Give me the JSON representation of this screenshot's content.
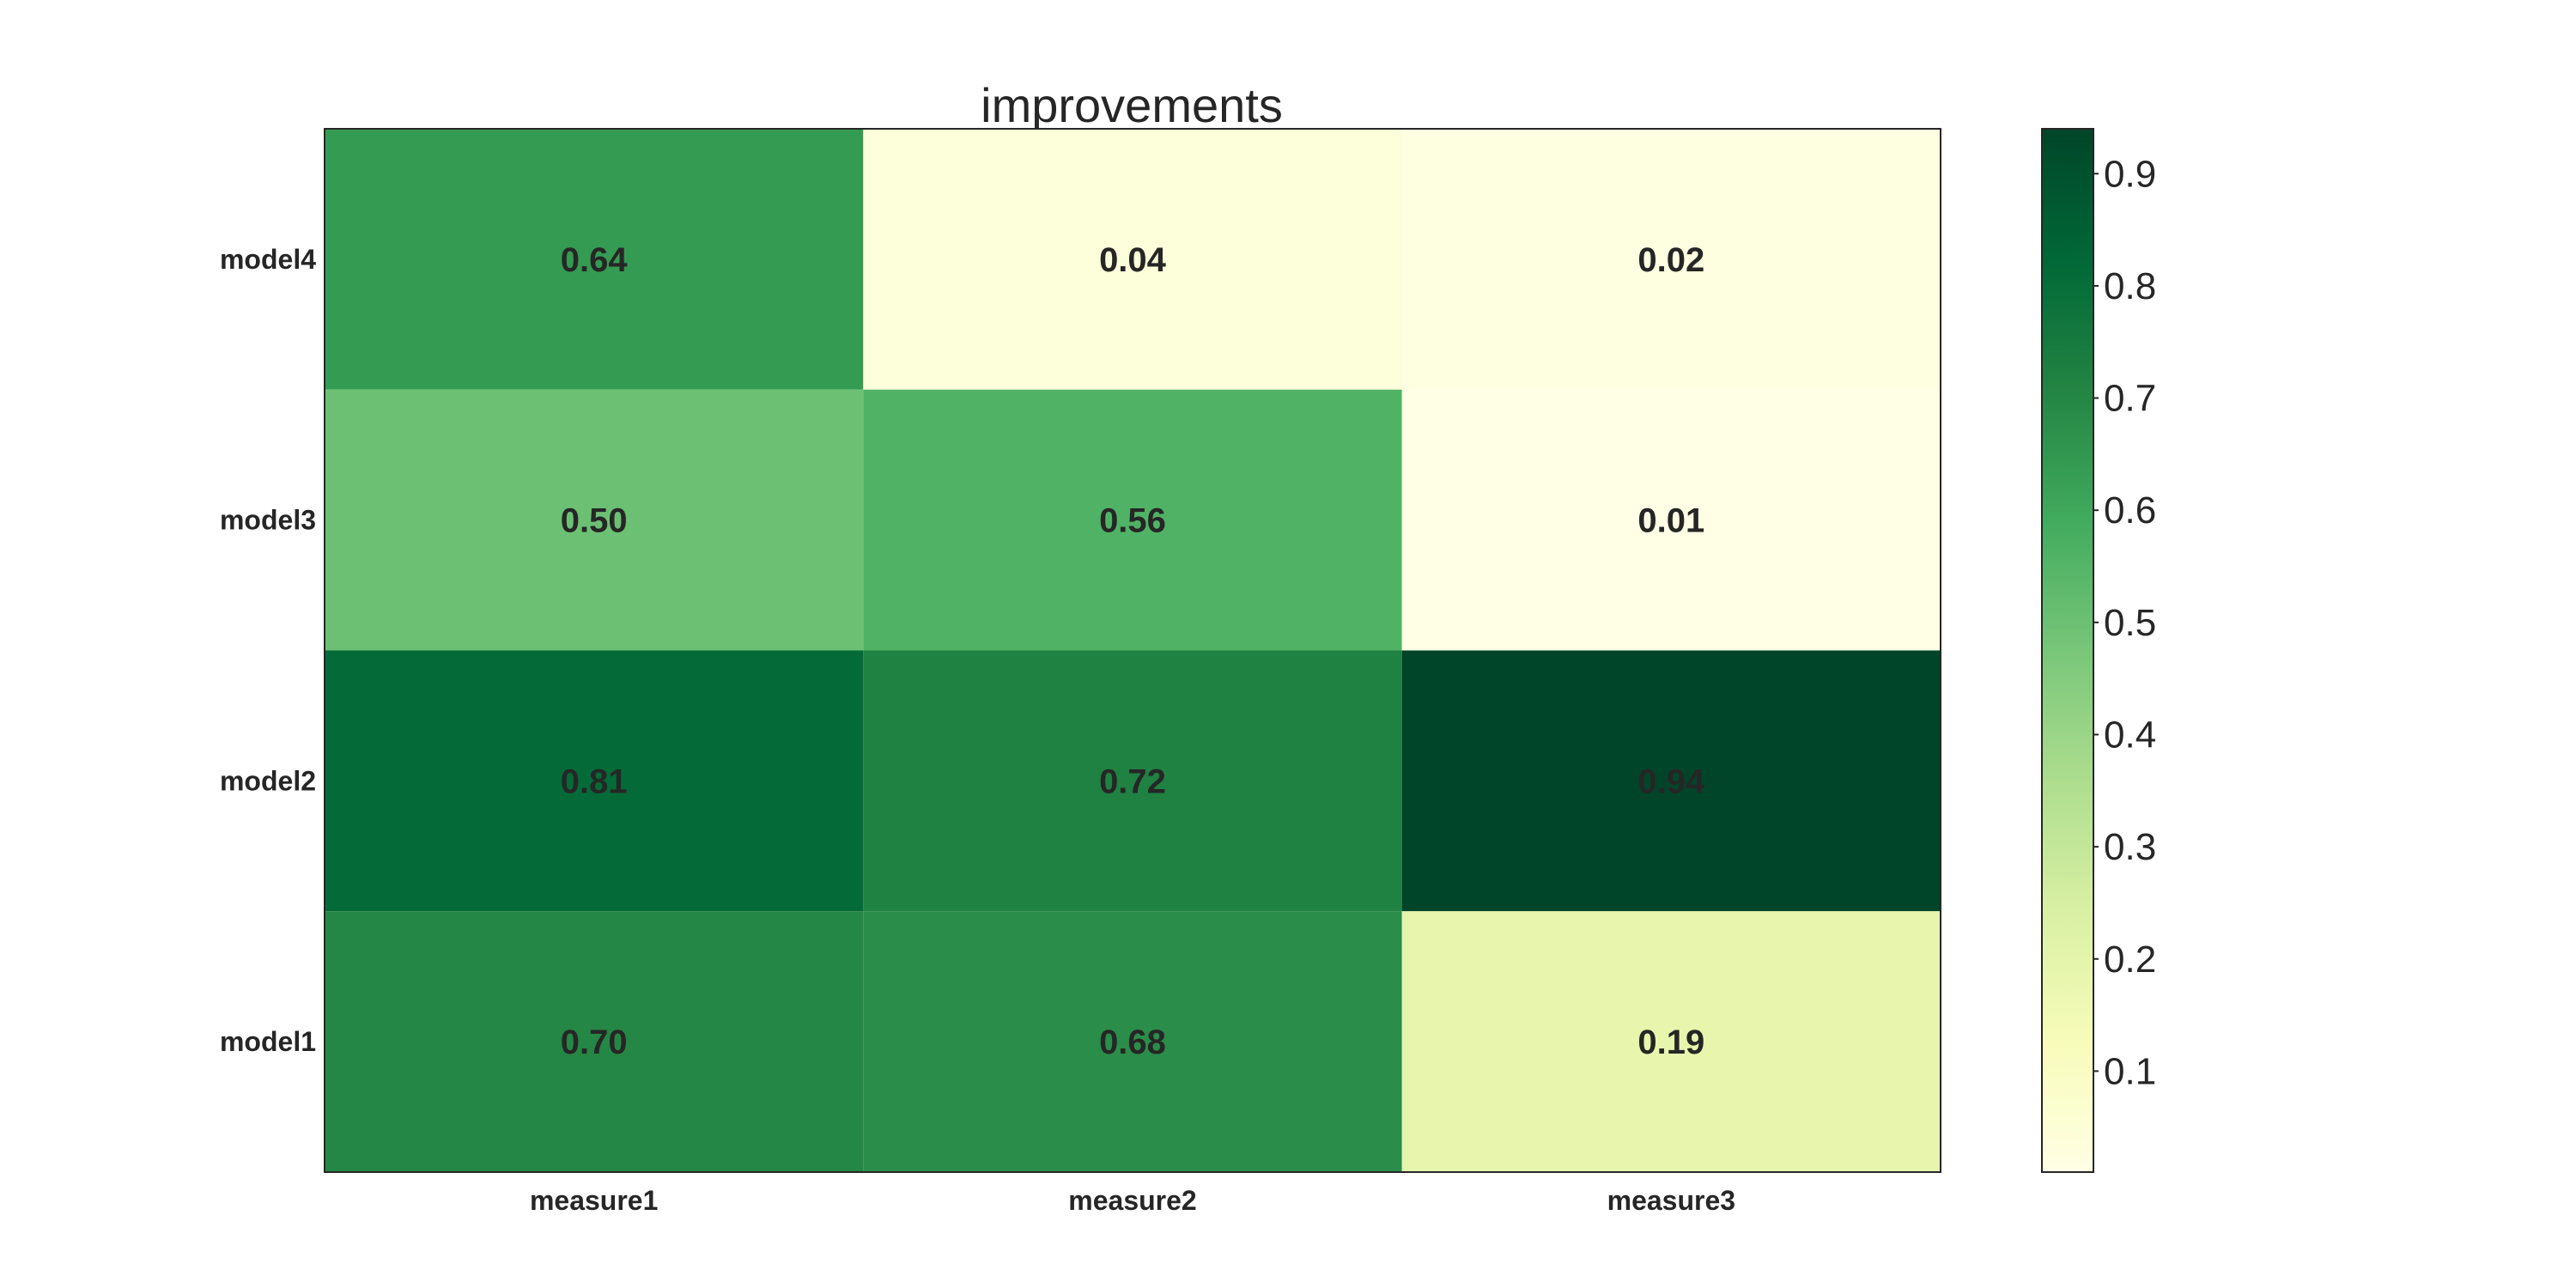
{
  "chart_data": {
    "type": "heatmap",
    "title": "improvements",
    "x_categories": [
      "measure1",
      "measure2",
      "measure3"
    ],
    "y_categories": [
      "model4",
      "model3",
      "model2",
      "model1"
    ],
    "values": [
      [
        0.64,
        0.04,
        0.02
      ],
      [
        0.5,
        0.56,
        0.01
      ],
      [
        0.81,
        0.72,
        0.94
      ],
      [
        0.7,
        0.68,
        0.19
      ]
    ],
    "value_labels": [
      [
        "0.64",
        "0.04",
        "0.02"
      ],
      [
        "0.50",
        "0.56",
        "0.01"
      ],
      [
        "0.81",
        "0.72",
        "0.94"
      ],
      [
        "0.70",
        "0.68",
        "0.19"
      ]
    ],
    "colormap": "YlGn",
    "colorbar": {
      "vmin": 0.01,
      "vmax": 0.94,
      "ticks": [
        "0.1",
        "0.2",
        "0.3",
        "0.4",
        "0.5",
        "0.6",
        "0.7",
        "0.8",
        "0.9"
      ]
    },
    "grid": false
  }
}
